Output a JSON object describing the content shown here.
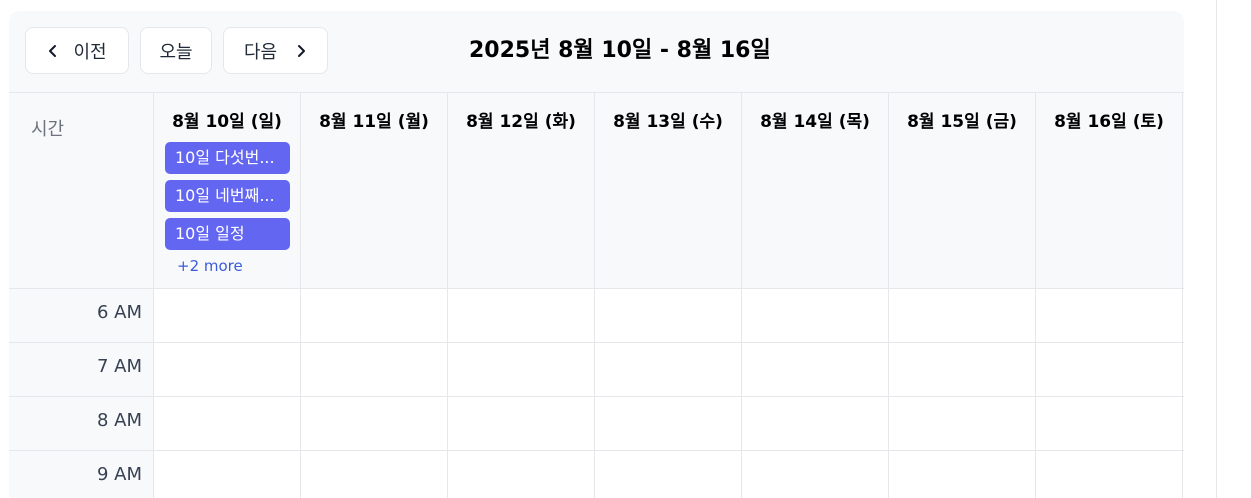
{
  "toolbar": {
    "prev_label": "이전",
    "today_label": "오늘",
    "next_label": "다음",
    "range_title": "2025년 8월 10일 - 8월 16일"
  },
  "time_column_label": "시간",
  "days": [
    {
      "label": "8월 10일 (일)"
    },
    {
      "label": "8월 11일 (월)"
    },
    {
      "label": "8월 12일 (화)"
    },
    {
      "label": "8월 13일 (수)"
    },
    {
      "label": "8월 14일 (목)"
    },
    {
      "label": "8월 15일 (금)"
    },
    {
      "label": "8월 16일 (토)"
    }
  ],
  "events": [
    {
      "title": "10일 다섯번..."
    },
    {
      "title": "10일 네번째..."
    },
    {
      "title": "10일 일정"
    }
  ],
  "more_label": "+2 more",
  "hours": [
    "6 AM",
    "7 AM",
    "8 AM",
    "9 AM"
  ],
  "colors": {
    "event": "#6366f1",
    "more_link": "#3b5bdb",
    "header_bg": "#f8f9fb",
    "border": "#e5e7eb"
  }
}
